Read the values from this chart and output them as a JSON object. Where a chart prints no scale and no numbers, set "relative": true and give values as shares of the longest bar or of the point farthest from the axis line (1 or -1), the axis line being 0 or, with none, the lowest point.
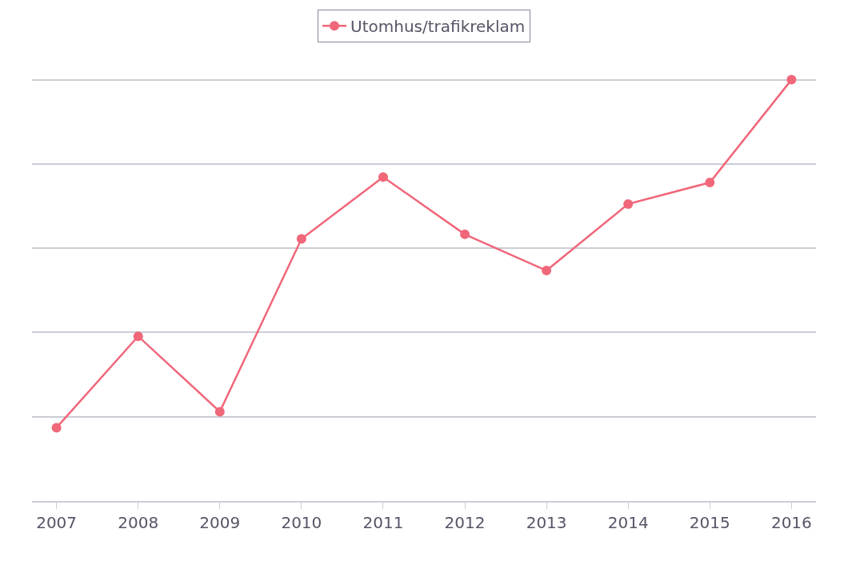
{
  "chart_data": {
    "type": "line",
    "relative": true,
    "categories": [
      "2007",
      "2008",
      "2009",
      "2010",
      "2011",
      "2012",
      "2013",
      "2014",
      "2015",
      "2016"
    ],
    "series": [
      {
        "name": "Utomhus/trafikreklam",
        "color": "#f0677a",
        "values": [
          0.174,
          0.391,
          0.212,
          0.622,
          0.769,
          0.633,
          0.547,
          0.705,
          0.756,
          1.0
        ]
      }
    ],
    "grid": "y",
    "legend": "top",
    "marker": "circle",
    "line_style": "solid"
  }
}
